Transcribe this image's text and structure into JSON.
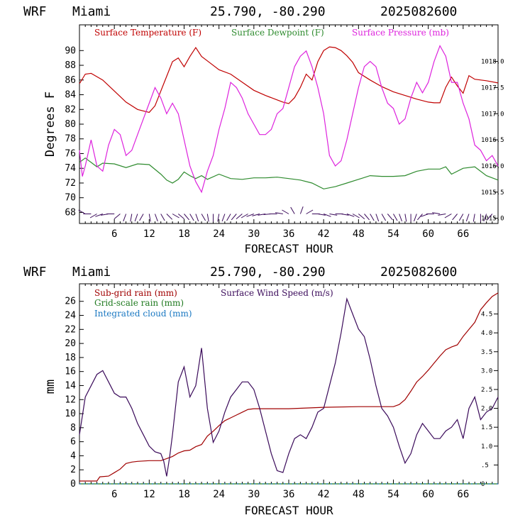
{
  "colors": {
    "temperature": "#c00000",
    "dewpoint": "#2e8b2e",
    "pressure": "#dd22dd",
    "subgrid_rain": "#a00000",
    "gridscale_rain": "#207a20",
    "integrated_cloud": "#1a78c2",
    "wind_speed": "#3a0a5a",
    "wind_barbs": "#3a0a5a"
  },
  "chart_data": [
    {
      "type": "line",
      "header": {
        "model": "WRF",
        "station": "Miami",
        "coords": "25.790, -80.290",
        "init": "2025082600"
      },
      "xlabel": "FORECAST HOUR",
      "ylabel": "Degrees F",
      "xlim": [
        0,
        72
      ],
      "ylim": [
        66.5,
        93.5
      ],
      "x_ticks": [
        "6",
        "12",
        "18",
        "24",
        "30",
        "36",
        "42",
        "48",
        "54",
        "60",
        "66"
      ],
      "y_ticks": [
        "68",
        "70",
        "72",
        "74",
        "76",
        "78",
        "80",
        "82",
        "84",
        "86",
        "88",
        "90"
      ],
      "y2lim": [
        1014.9,
        1018.7
      ],
      "y2_ticks": [
        "1015.0",
        "1015.5",
        "1016.0",
        "1016.5",
        "1017.0",
        "1017.5",
        "1018.0"
      ],
      "series": [
        {
          "name": "Surface Temperature (F)",
          "axis": "left",
          "x": [
            0,
            1,
            2,
            4,
            6,
            8,
            10,
            12,
            13,
            14,
            15,
            16,
            17,
            18,
            19,
            20,
            21,
            22,
            24,
            26,
            28,
            30,
            32,
            34,
            35,
            36,
            37,
            38,
            39,
            40,
            41,
            42,
            43,
            44,
            45,
            46,
            47,
            48,
            50,
            52,
            54,
            56,
            58,
            60,
            61,
            62,
            63,
            64,
            65,
            66,
            67,
            68,
            70,
            72
          ],
          "y": [
            85.5,
            86.8,
            86.9,
            86.0,
            84.5,
            83.0,
            82.0,
            81.6,
            82.5,
            84.5,
            86.5,
            88.5,
            89.0,
            87.8,
            89.2,
            90.4,
            89.2,
            88.6,
            87.4,
            86.8,
            85.7,
            84.6,
            83.9,
            83.3,
            83.0,
            82.8,
            83.6,
            85.0,
            86.8,
            86.0,
            88.5,
            90.0,
            90.5,
            90.4,
            90.0,
            89.3,
            88.4,
            87.0,
            86.0,
            85.1,
            84.4,
            83.9,
            83.4,
            83.0,
            82.9,
            82.9,
            85.0,
            86.4,
            85.2,
            84.2,
            86.6,
            86.1,
            85.9,
            85.6
          ]
        },
        {
          "name": "Surface Dewpoint (F)",
          "axis": "left",
          "x": [
            0,
            1,
            2,
            3,
            4,
            6,
            8,
            10,
            12,
            14,
            15,
            16,
            17,
            18,
            19,
            20,
            21,
            22,
            24,
            26,
            28,
            30,
            32,
            34,
            36,
            38,
            40,
            42,
            44,
            46,
            48,
            50,
            52,
            54,
            56,
            58,
            60,
            62,
            63,
            64,
            66,
            68,
            70,
            72
          ],
          "y": [
            74.8,
            75.4,
            74.8,
            74.2,
            74.7,
            74.6,
            74.1,
            74.6,
            74.5,
            73.2,
            72.4,
            72.0,
            72.5,
            73.5,
            73.0,
            72.6,
            73.0,
            72.5,
            73.2,
            72.6,
            72.5,
            72.7,
            72.7,
            72.8,
            72.6,
            72.4,
            72.0,
            71.2,
            71.5,
            72.0,
            72.5,
            73.0,
            72.9,
            72.9,
            73.0,
            73.6,
            73.9,
            73.9,
            74.2,
            73.2,
            74.0,
            74.2,
            73.0,
            72.4
          ]
        },
        {
          "name": "Surface Pressure (mb)",
          "axis": "right",
          "x": [
            0,
            0.5,
            1,
            2,
            3,
            4,
            5,
            6,
            7,
            8,
            9,
            10,
            11,
            12,
            13,
            14,
            15,
            16,
            17,
            18,
            19,
            20,
            21,
            22,
            23,
            24,
            25,
            26,
            27,
            28,
            29,
            30,
            31,
            32,
            33,
            34,
            35,
            36,
            37,
            38,
            39,
            40,
            41,
            42,
            43,
            44,
            45,
            46,
            47,
            48,
            49,
            50,
            51,
            52,
            53,
            54,
            55,
            56,
            57,
            58,
            59,
            60,
            61,
            62,
            63,
            64,
            65,
            66,
            67,
            68,
            69,
            70,
            71,
            72
          ],
          "y": [
            1016.3,
            1015.8,
            1016.0,
            1016.5,
            1016.0,
            1015.9,
            1016.4,
            1016.7,
            1016.6,
            1016.2,
            1016.3,
            1016.6,
            1016.9,
            1017.2,
            1017.5,
            1017.3,
            1017.0,
            1017.2,
            1017.0,
            1016.5,
            1016.0,
            1015.7,
            1015.5,
            1015.9,
            1016.2,
            1016.7,
            1017.1,
            1017.6,
            1017.5,
            1017.3,
            1017.0,
            1016.8,
            1016.6,
            1016.6,
            1016.7,
            1017.0,
            1017.1,
            1017.5,
            1017.9,
            1018.1,
            1018.2,
            1017.9,
            1017.5,
            1017.0,
            1016.2,
            1016.0,
            1016.1,
            1016.5,
            1017.0,
            1017.5,
            1017.9,
            1018.0,
            1017.9,
            1017.5,
            1017.2,
            1017.1,
            1016.8,
            1016.9,
            1017.3,
            1017.6,
            1017.4,
            1017.6,
            1018.0,
            1018.3,
            1018.1,
            1017.6,
            1017.6,
            1017.2,
            1016.9,
            1016.4,
            1016.3,
            1016.1,
            1016.2,
            1016.0
          ]
        }
      ],
      "wind_barbs": {
        "x": [
          1,
          2,
          3,
          4,
          5,
          6,
          7,
          8,
          9,
          10,
          11,
          12,
          13,
          14,
          15,
          16,
          17,
          18,
          19,
          20,
          21,
          22,
          23,
          24,
          25,
          26,
          27,
          28,
          29,
          30,
          31,
          32,
          33,
          34,
          35,
          36,
          37,
          38,
          39,
          40,
          41,
          42,
          43,
          44,
          45,
          46,
          47,
          48,
          49,
          50,
          51,
          52,
          53,
          54,
          55,
          56,
          57,
          58,
          59,
          60,
          61,
          62,
          63,
          64,
          65,
          66,
          67,
          68,
          69,
          70,
          71
        ],
        "direction_deg": [
          300,
          270,
          240,
          250,
          260,
          270,
          230,
          200,
          190,
          200,
          210,
          170,
          160,
          150,
          135,
          120,
          130,
          140,
          150,
          160,
          150,
          170,
          180,
          190,
          200,
          210,
          220,
          230,
          240,
          250,
          255,
          260,
          265,
          270,
          280,
          300,
          330,
          20,
          60,
          90,
          100,
          110,
          100,
          90,
          100,
          110,
          120,
          130,
          140,
          150,
          160,
          150,
          140,
          150,
          160,
          170,
          180,
          200,
          220,
          250,
          270,
          280,
          260,
          240,
          220,
          210,
          200,
          190,
          180,
          200,
          220
        ]
      }
    },
    {
      "type": "line",
      "header": {
        "model": "WRF",
        "station": "Miami",
        "coords": "25.790, -80.290",
        "init": "2025082600"
      },
      "xlabel": "FORECAST HOUR",
      "ylabel": "mm",
      "xlim": [
        0,
        72
      ],
      "ylim": [
        0,
        28.5
      ],
      "x_ticks": [
        "6",
        "12",
        "18",
        "24",
        "30",
        "36",
        "42",
        "48",
        "54",
        "60",
        "66"
      ],
      "y_ticks": [
        "0",
        "2",
        "4",
        "6",
        "8",
        "10",
        "12",
        "14",
        "16",
        "18",
        "20",
        "22",
        "24",
        "26"
      ],
      "y2lim": [
        0,
        5.3
      ],
      "y2_ticks": [
        "0",
        ".5",
        "1.0",
        "1.5",
        "2.0",
        "2.5",
        "3.0",
        "3.5",
        "4.0",
        "4.5"
      ],
      "series": [
        {
          "name": "Sub-grid rain (mm)",
          "axis": "left",
          "x": [
            0,
            3,
            3.5,
            5,
            6,
            7,
            8,
            9,
            10,
            12,
            14,
            15,
            16,
            17,
            18,
            19,
            20,
            21,
            22,
            23,
            24,
            25,
            26,
            27,
            28,
            29,
            30,
            36,
            42,
            48,
            54,
            55,
            56,
            57,
            58,
            59,
            60,
            61,
            62,
            63,
            64,
            65,
            66,
            67,
            68,
            69,
            70,
            71,
            72
          ],
          "y": [
            0.4,
            0.4,
            1.0,
            1.1,
            1.6,
            2.1,
            2.9,
            3.1,
            3.2,
            3.3,
            3.3,
            3.6,
            3.9,
            4.4,
            4.7,
            4.8,
            5.3,
            5.6,
            6.8,
            7.5,
            8.3,
            9.0,
            9.4,
            9.8,
            10.2,
            10.6,
            10.7,
            10.7,
            10.9,
            11.0,
            11.0,
            11.3,
            12.0,
            13.2,
            14.5,
            15.3,
            16.2,
            17.2,
            18.2,
            19.1,
            19.5,
            19.8,
            21.0,
            22.0,
            23.0,
            24.8,
            25.8,
            26.7,
            27.2
          ]
        },
        {
          "name": "Grid-scale rain (mm)",
          "axis": "left",
          "x": [
            0,
            72
          ],
          "y": [
            0,
            0
          ]
        },
        {
          "name": "Integrated cloud (mm)",
          "axis": "left",
          "x": [
            0,
            72
          ],
          "y": [
            0,
            0
          ]
        },
        {
          "name": "Surface Wind Speed (m/s)",
          "axis": "right",
          "x": [
            0,
            1,
            2,
            3,
            4,
            5,
            6,
            7,
            8,
            9,
            10,
            11,
            12,
            13,
            14,
            14.5,
            15,
            15.5,
            16,
            17,
            18,
            19,
            20,
            21,
            22,
            23,
            24,
            25,
            26,
            27,
            28,
            29,
            30,
            31,
            32,
            33,
            34,
            35,
            36,
            37,
            38,
            39,
            40,
            41,
            42,
            43,
            44,
            45,
            46,
            47,
            48,
            49,
            50,
            51,
            52,
            53,
            54,
            55,
            56,
            57,
            58,
            59,
            60,
            61,
            62,
            63,
            64,
            65,
            66,
            67,
            68,
            69,
            70,
            71,
            72
          ],
          "y": [
            1.3,
            2.3,
            2.6,
            2.9,
            3.0,
            2.7,
            2.4,
            2.3,
            2.3,
            2.0,
            1.6,
            1.3,
            1.0,
            0.85,
            0.8,
            0.6,
            0.2,
            0.7,
            1.3,
            2.7,
            3.1,
            2.3,
            2.6,
            3.6,
            2.0,
            1.1,
            1.4,
            1.9,
            2.3,
            2.5,
            2.7,
            2.7,
            2.5,
            2.0,
            1.4,
            0.8,
            0.35,
            0.3,
            0.8,
            1.2,
            1.3,
            1.2,
            1.5,
            1.9,
            2.0,
            2.6,
            3.2,
            4.0,
            4.9,
            4.5,
            4.1,
            3.9,
            3.3,
            2.6,
            2.0,
            1.8,
            1.5,
            1.0,
            0.55,
            0.8,
            1.3,
            1.6,
            1.4,
            1.2,
            1.2,
            1.4,
            1.5,
            1.7,
            1.2,
            2.0,
            2.3,
            1.7,
            1.9,
            2.0,
            2.3
          ]
        }
      ]
    }
  ]
}
